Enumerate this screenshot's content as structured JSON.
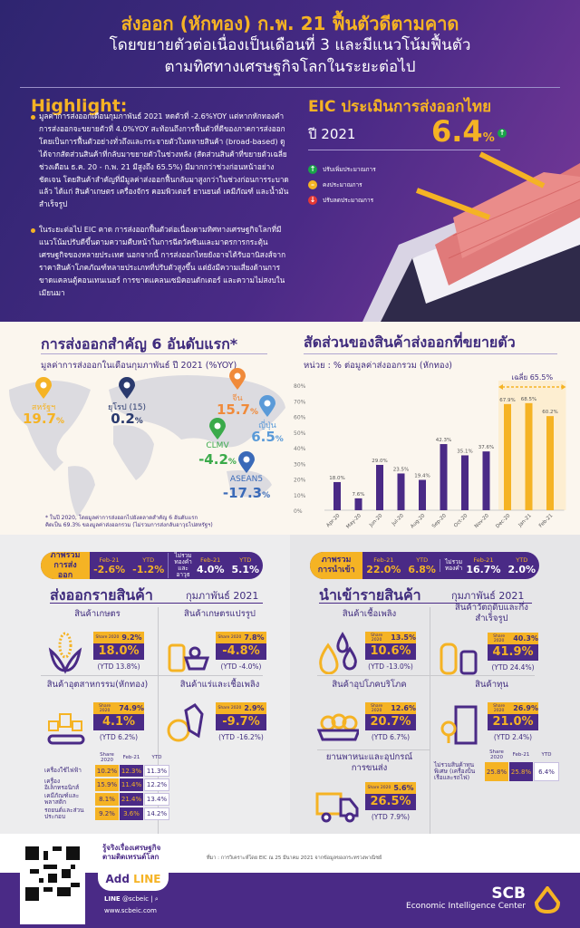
{
  "header": {
    "title": "ส่งออก (หักทอง) ก.พ. 21 ฟื้นตัวดีตามคาด",
    "subtitle1": "โดยขยายตัวต่อเนื่องเป็นเดือนที่ 3 และมีแนวโน้มฟื้นตัว",
    "subtitle2": "ตามทิศทางเศรษฐกิจโลกในระยะต่อไป"
  },
  "highlight": {
    "title": "Highlight:",
    "bullets": [
      "มูลค่าการส่งออกเดือนกุมภาพันธ์ 2021 หดตัวที่ -2.6%YOY แต่หากหักทองคำ การส่งออกจะขยายตัวที่ 4.0%YOY สะท้อนถึงการฟื้นตัวที่ดีของภาคการส่งออก โดยเป็นการฟื้นตัวอย่างทั่วถึงและกระจายตัวในหลายสินค้า (broad-based) ดูได้จากสัดส่วนสินค้าที่กลับมาขยายตัวในช่วงหลัง (สัดส่วนสินค้าที่ขยายตัวเฉลี่ยช่วงเดือน ธ.ค. 20 - ก.พ. 21 มีสูงถึง 65.5%) มีมากกว่าช่วงก่อนหน้าอย่างชัดเจน โดยสินค้าสำคัญที่มีมูลค่าส่งออกฟื้นกลับมาสูงกว่าในช่วงก่อนการระบาดแล้ว ได้แก่ สินค้าเกษตร เครื่องจักร คอมพิวเตอร์ ยานยนต์ เคมีภัณฑ์ และน้ำมันสำเร็จรูป",
      "ในระยะต่อไป EIC คาด การส่งออกฟื้นตัวต่อเนื่องตามทิศทางเศรษฐกิจโลกที่มีแนวโน้มปรับดีขึ้นตามความคืบหน้าในการฉีดวัคซีนและมาตรการกระตุ้นเศรษฐกิจของหลายประเทศ นอกจากนี้ การส่งออกไทยยังอาจได้รับอานิสงส์จากราคาสินค้าโภคภัณฑ์หลายประเภทที่ปรับตัวสูงขึ้น แต่ยังมีความเสี่ยงด้านการขาดแคลนตู้คอนเทนเนอร์ การขาดแคลนเซมิคอนดักเตอร์ และความไม่สงบในเมียนมา"
    ]
  },
  "eic": {
    "title": "EIC ประเมินการส่งออกไทย",
    "year": "ปี 2021",
    "value": "6.4",
    "unit": "%",
    "legend": [
      {
        "label": "ปรับเพิ่มประมาณการ",
        "icon": "arrow-up-icon",
        "color": "#1aa34a"
      },
      {
        "label": "คงประมาณการ",
        "icon": "minus-icon",
        "color": "#f5b324"
      },
      {
        "label": "ปรับลดประมาณการ",
        "icon": "arrow-down-icon",
        "color": "#e53935"
      }
    ]
  },
  "markets": {
    "title": "การส่งออกสำคัญ 6 อันดับแรก*",
    "subtitle": "มูลค่าการส่งออกในเดือนกุมภาพันธ์ ปี 2021 (%YOY)",
    "items": [
      {
        "name": "สหรัฐฯ",
        "value": "19.7",
        "color": "#f5b324"
      },
      {
        "name": "ยุโรป (15)",
        "value": "0.2",
        "color": "#2a3a6e"
      },
      {
        "name": "จีน",
        "value": "15.7",
        "color": "#f08a3a"
      },
      {
        "name": "ญี่ปุ่น",
        "value": "6.5",
        "color": "#5a9ad8"
      },
      {
        "name": "CLMV",
        "value": "-4.2",
        "color": "#3aaa4a"
      },
      {
        "name": "ASEAN5",
        "value": "-17.3",
        "color": "#3a6ab8"
      }
    ],
    "unit": "%",
    "footnote1": "* ในปี 2020, โดยมูลค่าการส่งออกไปยังตลาดสำคัญ 6 อันดับแรก",
    "footnote2": "คิดเป็น 69.3% ของมูลค่าส่งออกรวม (ไม่รวมการส่งกลับอาวุธไปสหรัฐฯ)"
  },
  "chart_data": {
    "type": "bar",
    "title": "สัดส่วนของสินค้าส่งออกที่ขยายตัว",
    "subtitle": "หน่วย : % ต่อมูลค่าส่งออกรวม (หักทอง)",
    "categories": [
      "Apr-20",
      "May-20",
      "Jun-20",
      "Jul-20",
      "Aug-20",
      "Sep-20",
      "Oct-20",
      "Nov-20",
      "Dec-20",
      "Jan-21",
      "Feb-21"
    ],
    "values": [
      18.0,
      7.6,
      29.0,
      23.5,
      19.4,
      42.3,
      35.1,
      37.6,
      67.9,
      68.5,
      60.2
    ],
    "value_labels": [
      "18.0%",
      "7.6%",
      "29.0%",
      "23.5%",
      "19.4%",
      "42.3%",
      "35.1%",
      "37.6%",
      "67.9%",
      "68.5%",
      "60.2%"
    ],
    "yticks": [
      "0%",
      "10%",
      "20%",
      "30%",
      "40%",
      "50%",
      "60%",
      "70%",
      "80%"
    ],
    "ylim": [
      0,
      80
    ],
    "highlight_from": "Dec-20",
    "annotation": "เฉลี่ย 65.5%",
    "colors": {
      "normal": "#4a2a86",
      "highlight": "#f5b324"
    }
  },
  "export_summary": {
    "label1": "ภาพรวม",
    "label2": "การส่งออก",
    "h_feb": "Feb-21",
    "h_ytd": "YTD",
    "feb": "-2.6%",
    "ytd": "-1.2%",
    "ex_label": [
      "ไม่รวม",
      "ทองคำ",
      "และอาวุธ"
    ],
    "ex_feb": "4.0%",
    "ex_ytd": "5.1%"
  },
  "import_summary": {
    "label1": "ภาพรวม",
    "label2": "การนำเข้า",
    "h_feb": "Feb-21",
    "h_ytd": "YTD",
    "feb": "22.0%",
    "ytd": "6.8%",
    "ex_label": [
      "ไม่รวม",
      "ทองคำ"
    ],
    "ex_feb": "16.7%",
    "ex_ytd": "2.0%"
  },
  "exports": {
    "title": "ส่งออกรายสินค้า",
    "month": "กุมภาพันธ์ 2021",
    "share_label": "Share 2020",
    "cards": [
      {
        "title": "สินค้าเกษตร",
        "icon": "corn-icon",
        "share": "9.2%",
        "value": "18.0%",
        "ytd": "(YTD 13.8%)"
      },
      {
        "title": "สินค้าเกษตรแปรรูป",
        "icon": "processed-food-icon",
        "share": "7.8%",
        "value": "-4.8%",
        "ytd": "(YTD -4.0%)"
      },
      {
        "title": "สินค้าอุตสาหกรรม(หักทอง)",
        "icon": "factory-conveyor-icon",
        "share": "74.9%",
        "value": "4.1%",
        "ytd": "(YTD 6.2%)"
      },
      {
        "title": "สินค้าแร่และเชื้อเพลิง",
        "icon": "mineral-icon",
        "share": "2.9%",
        "value": "-9.7%",
        "ytd": "(YTD -16.2%)"
      }
    ],
    "table": {
      "headers": [
        "Share 2020",
        "Feb-21",
        "YTD"
      ],
      "rows": [
        {
          "label": "เครื่องใช้ไฟฟ้า",
          "share": "10.2%",
          "feb": "12.3%",
          "ytd": "11.3%"
        },
        {
          "label": "เครื่องอิเล็กทรอนิกส์",
          "share": "15.9%",
          "feb": "11.4%",
          "ytd": "12.2%"
        },
        {
          "label": "เคมีภัณฑ์และพลาสติก",
          "share": "8.1%",
          "feb": "21.4%",
          "ytd": "13.4%"
        },
        {
          "label": "รถยนต์และส่วนประกอบ",
          "share": "9.2%",
          "feb": "3.6%",
          "ytd": "14.2%"
        }
      ]
    }
  },
  "imports": {
    "title": "นำเข้ารายสินค้า",
    "month": "กุมภาพันธ์ 2021",
    "share_label": "Share 2020",
    "cards": [
      {
        "title": "สินค้าเชื้อเพลิง",
        "icon": "oil-drops-icon",
        "share": "13.5%",
        "value": "10.6%",
        "ytd": "(YTD -13.0%)"
      },
      {
        "title": "สินค้าวัตถุดิบและกึ่งสำเร็จรูป",
        "icon": "bottles-icon",
        "share": "40.3%",
        "value": "41.9%",
        "ytd": "(YTD 24.4%)"
      },
      {
        "title": "สินค้าอุปโภคบริโภค",
        "icon": "eggs-icon",
        "share": "12.6%",
        "value": "20.7%",
        "ytd": "(YTD 6.7%)"
      },
      {
        "title": "สินค้าทุน",
        "icon": "building-icon",
        "share": "26.9%",
        "value": "21.0%",
        "ytd": "(YTD 2.4%)"
      },
      {
        "title": "ยานพาหนะและอุปกรณ์การขนส่ง",
        "icon": "truck-icon",
        "share": "5.6%",
        "value": "26.5%",
        "ytd": "(YTD 7.9%)"
      }
    ],
    "table": {
      "headers": [
        "Share 2020",
        "Feb-21",
        "YTD"
      ],
      "rows": [
        {
          "label": "ไม่รวมสินค้าทุนพิเศษ (เครื่องบิน เรือและรถไฟ)",
          "share": "25.8%",
          "feb": "25.8%",
          "ytd": "6.4%"
        }
      ]
    }
  },
  "footer": {
    "tagline1": "รู้จริงเรื่องเศรษฐกิจ",
    "tagline2": "ตามติดเทรนด์โลก",
    "add": "Add",
    "line": "LINE",
    "line_id_label": "LINE",
    "line_id": "@scbeic |",
    "website": "www.scbeic.com",
    "source": "ที่มา : การวิเคราะห์โดย EIC ณ 25 มีนาคม 2021 จากข้อมูลของกระทรวงพาณิชย์",
    "brand": "SCB",
    "brand_sub": "Economic Intelligence Center"
  }
}
